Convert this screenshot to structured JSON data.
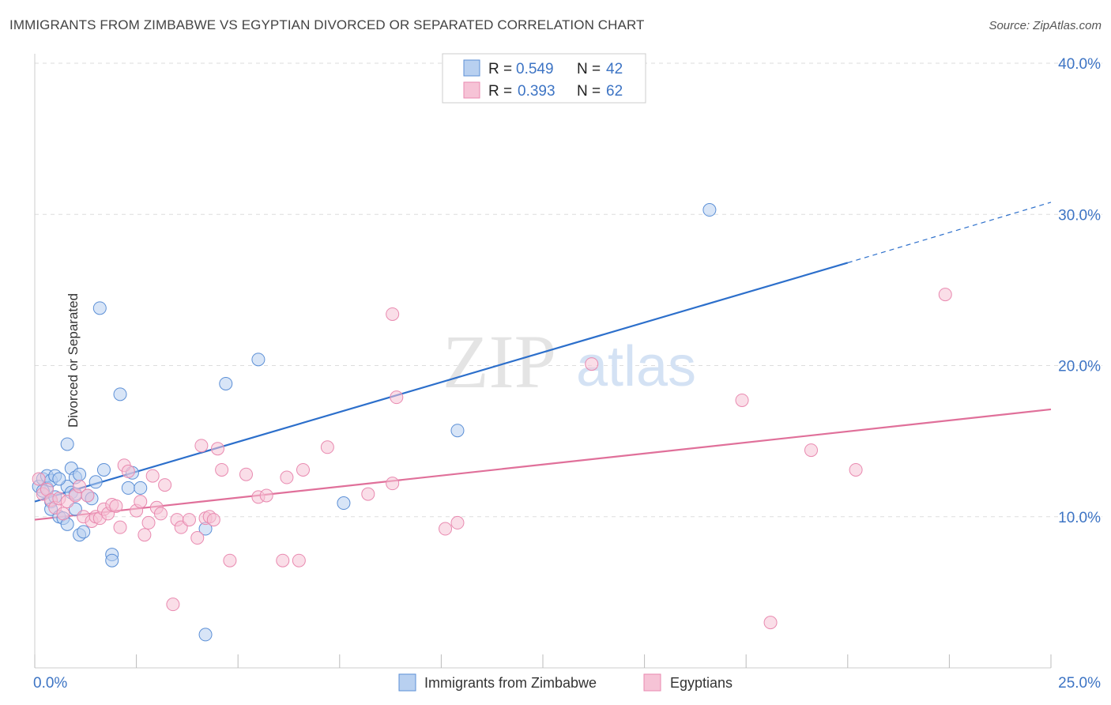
{
  "header": {
    "title": "IMMIGRANTS FROM ZIMBABWE VS EGYPTIAN DIVORCED OR SEPARATED CORRELATION CHART",
    "source": "Source: ZipAtlas.com"
  },
  "watermark": {
    "zip": "ZIP",
    "atlas": "atlas"
  },
  "colors": {
    "blue": "#5b8fd6",
    "blue_fill": "#b8d0f0",
    "blue_line": "#2c6fcb",
    "pink": "#e98ab0",
    "pink_fill": "#f6c3d6",
    "pink_line": "#e0709a",
    "tick_label": "#3d74c4",
    "grid": "#dddddd"
  },
  "legend_top": {
    "rows": [
      {
        "r_label": "R = ",
        "r_value": "0.549",
        "n_label": "N = ",
        "n_value": "42",
        "color": "blue"
      },
      {
        "r_label": "R = ",
        "r_value": "0.393",
        "n_label": "N = ",
        "n_value": "62",
        "color": "pink"
      }
    ]
  },
  "chart_data": {
    "type": "scatter",
    "title": "IMMIGRANTS FROM ZIMBABWE VS EGYPTIAN DIVORCED OR SEPARATED CORRELATION CHART",
    "xlabel": "",
    "ylabel": "Divorced or Separated",
    "xlim": [
      0,
      25
    ],
    "ylim": [
      0,
      40
    ],
    "x_tick_labels": [
      {
        "value": 0,
        "label": "0.0%"
      },
      {
        "value": 25,
        "label": "25.0%"
      }
    ],
    "y_tick_labels": [
      {
        "value": 10,
        "label": "10.0%"
      },
      {
        "value": 20,
        "label": "20.0%"
      },
      {
        "value": 30,
        "label": "30.0%"
      },
      {
        "value": 40,
        "label": "40.0%"
      }
    ],
    "legend_position": "bottom",
    "series": [
      {
        "name": "Immigrants from Zimbabwe",
        "color": "blue",
        "R": 0.549,
        "N": 42,
        "trend": {
          "x0": 0,
          "y0": 11.0,
          "x1": 20,
          "y1": 26.8,
          "dash_to_x": 25,
          "dash_to_y": 30.8
        },
        "points": [
          [
            0.1,
            12.0
          ],
          [
            0.2,
            12.5
          ],
          [
            0.3,
            11.9
          ],
          [
            0.3,
            12.7
          ],
          [
            0.4,
            12.4
          ],
          [
            0.4,
            11.0
          ],
          [
            0.4,
            10.5
          ],
          [
            0.5,
            12.7
          ],
          [
            0.5,
            11.3
          ],
          [
            0.6,
            10.0
          ],
          [
            0.7,
            9.9
          ],
          [
            0.8,
            14.8
          ],
          [
            0.8,
            12.0
          ],
          [
            0.8,
            9.5
          ],
          [
            0.9,
            11.6
          ],
          [
            0.9,
            13.2
          ],
          [
            1.0,
            12.6
          ],
          [
            1.0,
            11.5
          ],
          [
            1.0,
            10.5
          ],
          [
            1.1,
            12.8
          ],
          [
            1.1,
            8.8
          ],
          [
            1.2,
            9.0
          ],
          [
            1.3,
            11.4
          ],
          [
            1.4,
            11.2
          ],
          [
            1.5,
            12.3
          ],
          [
            1.6,
            23.8
          ],
          [
            1.7,
            13.1
          ],
          [
            1.9,
            7.5
          ],
          [
            1.9,
            7.1
          ],
          [
            2.1,
            18.1
          ],
          [
            2.3,
            11.9
          ],
          [
            2.4,
            12.9
          ],
          [
            2.6,
            11.9
          ],
          [
            4.2,
            9.2
          ],
          [
            4.2,
            2.2
          ],
          [
            4.7,
            18.8
          ],
          [
            5.5,
            20.4
          ],
          [
            7.6,
            10.9
          ],
          [
            10.4,
            15.7
          ],
          [
            16.6,
            30.3
          ],
          [
            0.2,
            11.7
          ],
          [
            0.6,
            12.5
          ]
        ]
      },
      {
        "name": "Egyptians",
        "color": "pink",
        "R": 0.393,
        "N": 62,
        "trend": {
          "x0": 0,
          "y0": 9.8,
          "x1": 25,
          "y1": 17.1
        },
        "points": [
          [
            0.1,
            12.5
          ],
          [
            0.2,
            11.5
          ],
          [
            0.3,
            11.8
          ],
          [
            0.4,
            11.1
          ],
          [
            0.5,
            10.6
          ],
          [
            0.6,
            11.2
          ],
          [
            0.7,
            10.2
          ],
          [
            0.8,
            11.0
          ],
          [
            1.0,
            11.4
          ],
          [
            1.1,
            12.0
          ],
          [
            1.2,
            10.0
          ],
          [
            1.3,
            11.4
          ],
          [
            1.4,
            9.7
          ],
          [
            1.5,
            10.0
          ],
          [
            1.6,
            9.9
          ],
          [
            1.7,
            10.5
          ],
          [
            1.8,
            10.2
          ],
          [
            1.9,
            10.8
          ],
          [
            2.0,
            10.7
          ],
          [
            2.1,
            9.3
          ],
          [
            2.2,
            13.4
          ],
          [
            2.3,
            13.0
          ],
          [
            2.5,
            10.4
          ],
          [
            2.6,
            11.0
          ],
          [
            2.7,
            8.8
          ],
          [
            2.8,
            9.6
          ],
          [
            2.9,
            12.7
          ],
          [
            3.0,
            10.6
          ],
          [
            3.1,
            10.2
          ],
          [
            3.2,
            12.1
          ],
          [
            3.4,
            4.2
          ],
          [
            3.5,
            9.8
          ],
          [
            3.6,
            9.3
          ],
          [
            3.8,
            9.8
          ],
          [
            4.0,
            8.6
          ],
          [
            4.1,
            14.7
          ],
          [
            4.2,
            9.9
          ],
          [
            4.3,
            10.0
          ],
          [
            4.4,
            9.8
          ],
          [
            4.5,
            14.5
          ],
          [
            4.6,
            13.1
          ],
          [
            4.8,
            7.1
          ],
          [
            5.2,
            12.8
          ],
          [
            5.5,
            11.3
          ],
          [
            5.7,
            11.4
          ],
          [
            6.1,
            7.1
          ],
          [
            6.2,
            12.6
          ],
          [
            6.5,
            7.1
          ],
          [
            6.6,
            13.1
          ],
          [
            7.2,
            14.6
          ],
          [
            8.2,
            11.5
          ],
          [
            8.8,
            23.4
          ],
          [
            8.8,
            12.2
          ],
          [
            8.9,
            17.9
          ],
          [
            10.1,
            9.2
          ],
          [
            10.4,
            9.6
          ],
          [
            13.7,
            20.1
          ],
          [
            17.4,
            17.7
          ],
          [
            18.1,
            3.0
          ],
          [
            19.1,
            14.4
          ],
          [
            20.2,
            13.1
          ],
          [
            22.4,
            24.7
          ]
        ]
      }
    ]
  },
  "legend_bottom": {
    "items": [
      {
        "label": "Immigrants from Zimbabwe",
        "color": "blue"
      },
      {
        "label": "Egyptians",
        "color": "pink"
      }
    ]
  }
}
